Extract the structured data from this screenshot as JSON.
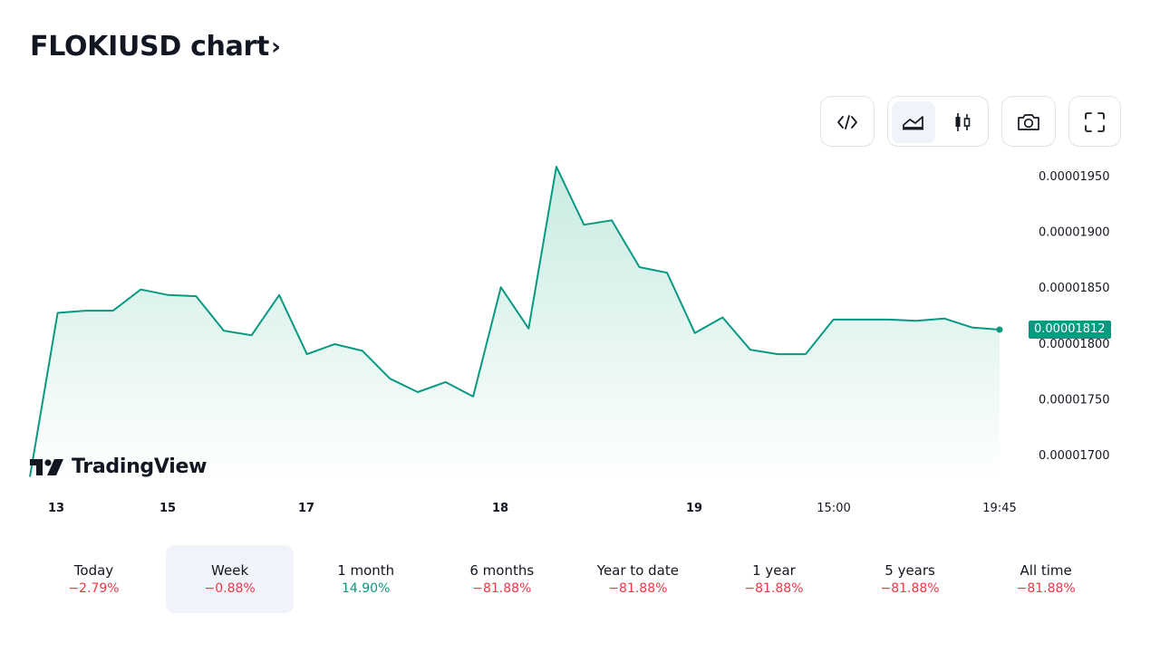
{
  "header": {
    "title": "FLOKIUSD chart",
    "chevron": "›"
  },
  "toolbar": {
    "buttons": [
      {
        "name": "embed-code-icon",
        "group": 1
      },
      {
        "name": "area-chart-icon",
        "group": 2,
        "active": true
      },
      {
        "name": "candlestick-chart-icon",
        "group": 2
      },
      {
        "name": "camera-icon",
        "group": 3
      },
      {
        "name": "fullscreen-icon",
        "group": 4
      }
    ]
  },
  "branding": {
    "logo_text": "TradingView"
  },
  "colors": {
    "line": "#089981",
    "fill_top": "#c8ebe1",
    "fill_bottom": "#ffffff",
    "negative": "#f23645",
    "positive": "#089981",
    "active_bg": "#f0f3fa"
  },
  "chart_data": {
    "type": "area",
    "symbol": "FLOKIUSD",
    "x_tick_labels": [
      "13",
      "15",
      "17",
      "18",
      "19",
      "15:00",
      "19:45"
    ],
    "y_tick_labels": [
      "0.00001950",
      "0.00001900",
      "0.00001850",
      "0.00001800",
      "0.00001750",
      "0.00001700"
    ],
    "ylim": [
      1.675e-05,
      1.967e-05
    ],
    "last_price": "0.00001812",
    "values": [
      1.68e-05,
      1.827e-05,
      1.829e-05,
      1.829e-05,
      1.848e-05,
      1.843e-05,
      1.842e-05,
      1.811e-05,
      1.807e-05,
      1.843e-05,
      1.79e-05,
      1.799e-05,
      1.793e-05,
      1.768e-05,
      1.756e-05,
      1.765e-05,
      1.752e-05,
      1.85e-05,
      1.813e-05,
      1.958e-05,
      1.906e-05,
      1.91e-05,
      1.868e-05,
      1.863e-05,
      1.809e-05,
      1.823e-05,
      1.794e-05,
      1.79e-05,
      1.79e-05,
      1.821e-05,
      1.821e-05,
      1.821e-05,
      1.82e-05,
      1.822e-05,
      1.814e-05,
      1.812e-05
    ],
    "grid": false,
    "legend": "none"
  },
  "periods": [
    {
      "label": "Today",
      "change": "−2.79%",
      "direction": "negative",
      "active": false
    },
    {
      "label": "Week",
      "change": "−0.88%",
      "direction": "negative",
      "active": true
    },
    {
      "label": "1 month",
      "change": "14.90%",
      "direction": "positive",
      "active": false
    },
    {
      "label": "6 months",
      "change": "−81.88%",
      "direction": "negative",
      "active": false
    },
    {
      "label": "Year to date",
      "change": "−81.88%",
      "direction": "negative",
      "active": false
    },
    {
      "label": "1 year",
      "change": "−81.88%",
      "direction": "negative",
      "active": false
    },
    {
      "label": "5 years",
      "change": "−81.88%",
      "direction": "negative",
      "active": false
    },
    {
      "label": "All time",
      "change": "−81.88%",
      "direction": "negative",
      "active": false
    }
  ]
}
